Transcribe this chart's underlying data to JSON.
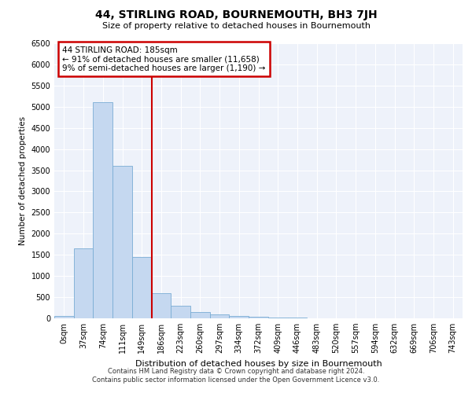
{
  "title": "44, STIRLING ROAD, BOURNEMOUTH, BH3 7JH",
  "subtitle": "Size of property relative to detached houses in Bournemouth",
  "xlabel": "Distribution of detached houses by size in Bournemouth",
  "ylabel": "Number of detached properties",
  "footnote1": "Contains HM Land Registry data © Crown copyright and database right 2024.",
  "footnote2": "Contains public sector information licensed under the Open Government Licence v3.0.",
  "categories": [
    "0sqm",
    "37sqm",
    "74sqm",
    "111sqm",
    "149sqm",
    "186sqm",
    "223sqm",
    "260sqm",
    "297sqm",
    "334sqm",
    "372sqm",
    "409sqm",
    "446sqm",
    "483sqm",
    "520sqm",
    "557sqm",
    "594sqm",
    "632sqm",
    "669sqm",
    "706sqm",
    "743sqm"
  ],
  "values": [
    50,
    1650,
    5100,
    3600,
    1450,
    600,
    300,
    150,
    100,
    50,
    30,
    20,
    15,
    5,
    3,
    2,
    1,
    1,
    1,
    1,
    1
  ],
  "bar_color": "#c5d8f0",
  "bar_edge_color": "#7aadd4",
  "ylim": [
    0,
    6500
  ],
  "yticks": [
    0,
    500,
    1000,
    1500,
    2000,
    2500,
    3000,
    3500,
    4000,
    4500,
    5000,
    5500,
    6000,
    6500
  ],
  "red_line_index": 5,
  "annotation_title": "44 STIRLING ROAD: 185sqm",
  "annotation_line1": "← 91% of detached houses are smaller (11,658)",
  "annotation_line2": "9% of semi-detached houses are larger (1,190) →",
  "annotation_box_color": "#ffffff",
  "annotation_box_edge": "#cc0000",
  "red_line_color": "#cc0000",
  "background_color": "#eef2fa",
  "grid_color": "#ffffff"
}
